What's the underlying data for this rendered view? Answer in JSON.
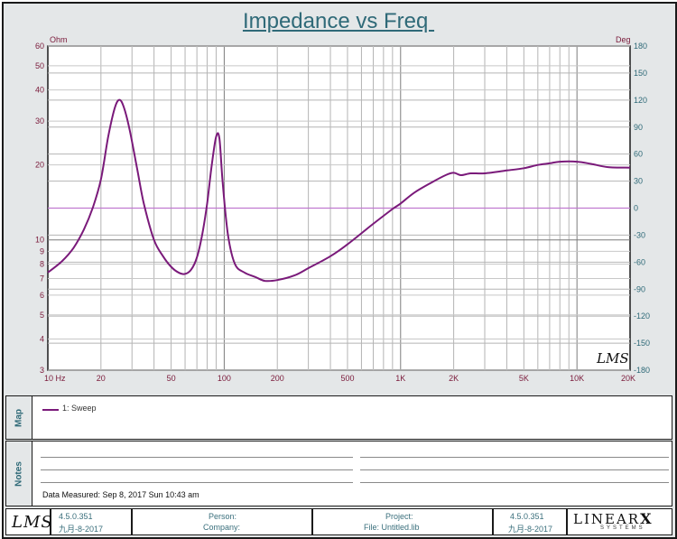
{
  "chart_data": {
    "type": "line",
    "title": "Impedance vs Freq ",
    "y_left_unit": "Ohm",
    "y_right_unit": "Deg",
    "x_scale": "log",
    "y_scale": "log",
    "xlim": [
      10,
      20000
    ],
    "ylim": [
      3,
      60
    ],
    "y2lim": [
      -180,
      180
    ],
    "grid": true,
    "x_ticks": [
      {
        "v": 10,
        "label": "10  Hz"
      },
      {
        "v": 20,
        "label": "20"
      },
      {
        "v": 50,
        "label": "50"
      },
      {
        "v": 100,
        "label": "100"
      },
      {
        "v": 200,
        "label": "200"
      },
      {
        "v": 500,
        "label": "500"
      },
      {
        "v": 1000,
        "label": "1K"
      },
      {
        "v": 2000,
        "label": "2K"
      },
      {
        "v": 5000,
        "label": "5K"
      },
      {
        "v": 10000,
        "label": "10K"
      },
      {
        "v": 20000,
        "label": "20K"
      }
    ],
    "y_ticks": [
      {
        "v": 3,
        "label": "3"
      },
      {
        "v": 4,
        "label": "4"
      },
      {
        "v": 5,
        "label": "5"
      },
      {
        "v": 6,
        "label": "6"
      },
      {
        "v": 7,
        "label": "7"
      },
      {
        "v": 8,
        "label": "8"
      },
      {
        "v": 9,
        "label": "9"
      },
      {
        "v": 10,
        "label": "10"
      },
      {
        "v": 20,
        "label": "20"
      },
      {
        "v": 30,
        "label": "30"
      },
      {
        "v": 40,
        "label": "40"
      },
      {
        "v": 50,
        "label": "50"
      },
      {
        "v": 60,
        "label": "60"
      }
    ],
    "y2_ticks": [
      {
        "v": 180,
        "label": "180"
      },
      {
        "v": 150,
        "label": "150"
      },
      {
        "v": 120,
        "label": "120"
      },
      {
        "v": 90,
        "label": "90"
      },
      {
        "v": 60,
        "label": "60"
      },
      {
        "v": 30,
        "label": "30"
      },
      {
        "v": 0,
        "label": "0"
      },
      {
        "v": -30,
        "label": "-30"
      },
      {
        "v": -60,
        "label": "-60"
      },
      {
        "v": -90,
        "label": "-90"
      },
      {
        "v": -120,
        "label": "-120"
      },
      {
        "v": -150,
        "label": "-150"
      },
      {
        "v": -180,
        "label": "-180"
      }
    ],
    "series": [
      {
        "name": "1: Sweep",
        "color": "#7a1a7a",
        "x": [
          10,
          12,
          14,
          16,
          18,
          20,
          22,
          24,
          25.5,
          27,
          29,
          32,
          35,
          40,
          45,
          50,
          55,
          60,
          65,
          70,
          75,
          80,
          85,
          90,
          94,
          98,
          105,
          115,
          130,
          150,
          170,
          200,
          250,
          300,
          400,
          500,
          700,
          900,
          1000,
          1200,
          1500,
          1800,
          2000,
          2200,
          2500,
          3000,
          4000,
          5000,
          6000,
          7000,
          8000,
          10000,
          12000,
          15000,
          20000
        ],
        "y": [
          7.4,
          8.2,
          9.3,
          11,
          13.5,
          17.5,
          26,
          34,
          36.5,
          34,
          28,
          19.5,
          14,
          10,
          8.6,
          7.8,
          7.4,
          7.3,
          7.6,
          8.5,
          10.5,
          14,
          20,
          26,
          25.5,
          17,
          10.5,
          8,
          7.4,
          7.1,
          6.85,
          6.9,
          7.2,
          7.7,
          8.6,
          9.6,
          11.6,
          13.3,
          14,
          15.5,
          17,
          18.2,
          18.6,
          18.2,
          18.5,
          18.5,
          19.0,
          19.4,
          20.0,
          20.3,
          20.6,
          20.6,
          20.2,
          19.6,
          19.5
        ]
      }
    ],
    "zero_phase_line": 0
  },
  "watermark": "LMS",
  "map_label": "Map",
  "notes_label": "Notes",
  "legend_entry": "1: Sweep",
  "data_measured": "Data Measured: Sep 8, 2017 Sun 10:43 am",
  "footer": {
    "logo_text": "LMS",
    "version": "4.5.0.351",
    "date": "九月-8-2017",
    "person_label": "Person:",
    "company_label": "Company:",
    "project_label": "Project:",
    "file_label": "File: Untitled.lib",
    "version2": "4.5.0.351",
    "date2": "九月-8-2017",
    "brand_main": "LINEAR",
    "brand_x": "X",
    "brand_sub": "SYSTEMS"
  }
}
